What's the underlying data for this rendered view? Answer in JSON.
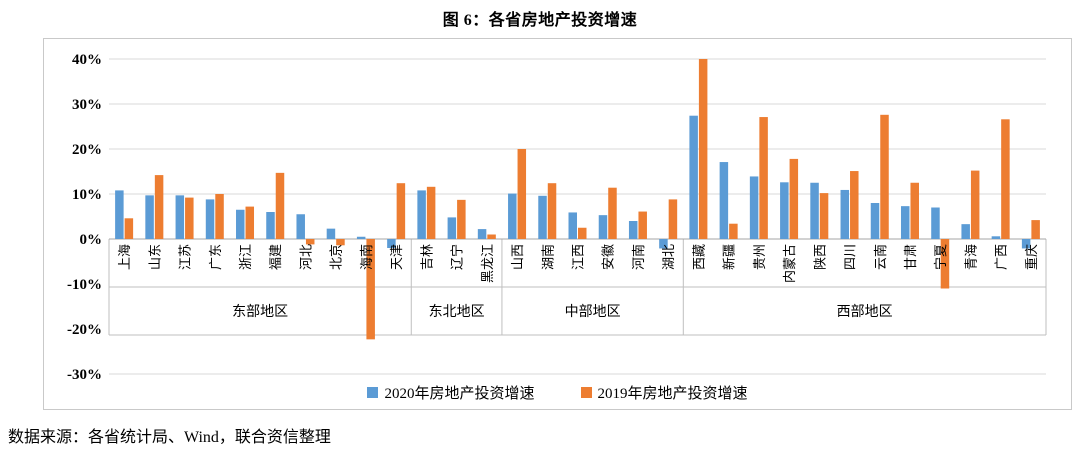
{
  "title": "图 6：各省房地产投资增速",
  "source": "数据来源：各省统计局、Wind，联合资信整理",
  "colors": {
    "series_2020": "#5B9BD5",
    "series_2019": "#ED7D31",
    "gridline": "#D9D9D9",
    "axis_line": "#A6A6A6",
    "table_line": "#BFBFBF"
  },
  "legend": [
    {
      "label": "2020年房地产投资增速",
      "color": "#5B9BD5"
    },
    {
      "label": "2019年房地产投资增速",
      "color": "#ED7D31"
    }
  ],
  "chart_data": {
    "type": "bar",
    "title": "图 6：各省房地产投资增速",
    "xlabel": "",
    "ylabel": "",
    "ylim": [
      -30,
      40
    ],
    "yticks": [
      40,
      30,
      20,
      10,
      0,
      -10,
      -20,
      -30
    ],
    "ytick_suffix": "%",
    "grid": true,
    "legend_position": "bottom",
    "series_names": [
      "2020年房地产投资增速",
      "2019年房地产投资增速"
    ],
    "groups": [
      {
        "label": "东部地区",
        "provinces": [
          "上海",
          "山东",
          "江苏",
          "广东",
          "浙江",
          "福建",
          "河北",
          "北京",
          "海南",
          "天津"
        ],
        "v2020": [
          10.8,
          9.7,
          9.7,
          8.8,
          6.5,
          6.0,
          5.5,
          2.3,
          0.5,
          -2.0
        ],
        "v2019": [
          4.6,
          14.2,
          9.2,
          10.0,
          7.2,
          14.7,
          -1.2,
          -1.4,
          -22.3,
          12.4
        ]
      },
      {
        "label": "东北地区",
        "provinces": [
          "吉林",
          "辽宁",
          "黑龙江"
        ],
        "v2020": [
          10.8,
          4.8,
          2.2
        ],
        "v2019": [
          11.6,
          8.7,
          1.0
        ]
      },
      {
        "label": "中部地区",
        "provinces": [
          "山西",
          "湖南",
          "江西",
          "安徽",
          "河南",
          "湖北"
        ],
        "v2020": [
          10.1,
          9.6,
          5.9,
          5.3,
          4.0,
          -2.1
        ],
        "v2019": [
          20.0,
          12.4,
          2.5,
          11.4,
          6.1,
          8.8
        ]
      },
      {
        "label": "西部地区",
        "provinces": [
          "西藏",
          "新疆",
          "贵州",
          "内蒙古",
          "陕西",
          "四川",
          "云南",
          "甘肃",
          "宁夏",
          "青海",
          "广西",
          "重庆"
        ],
        "v2020": [
          27.4,
          17.1,
          13.9,
          12.6,
          12.5,
          10.9,
          8.0,
          7.3,
          7.0,
          3.3,
          0.6,
          -2.1
        ],
        "v2019": [
          40.0,
          3.4,
          27.1,
          17.8,
          10.2,
          15.1,
          27.6,
          12.5,
          -11.0,
          15.2,
          26.6,
          4.2
        ]
      }
    ]
  }
}
